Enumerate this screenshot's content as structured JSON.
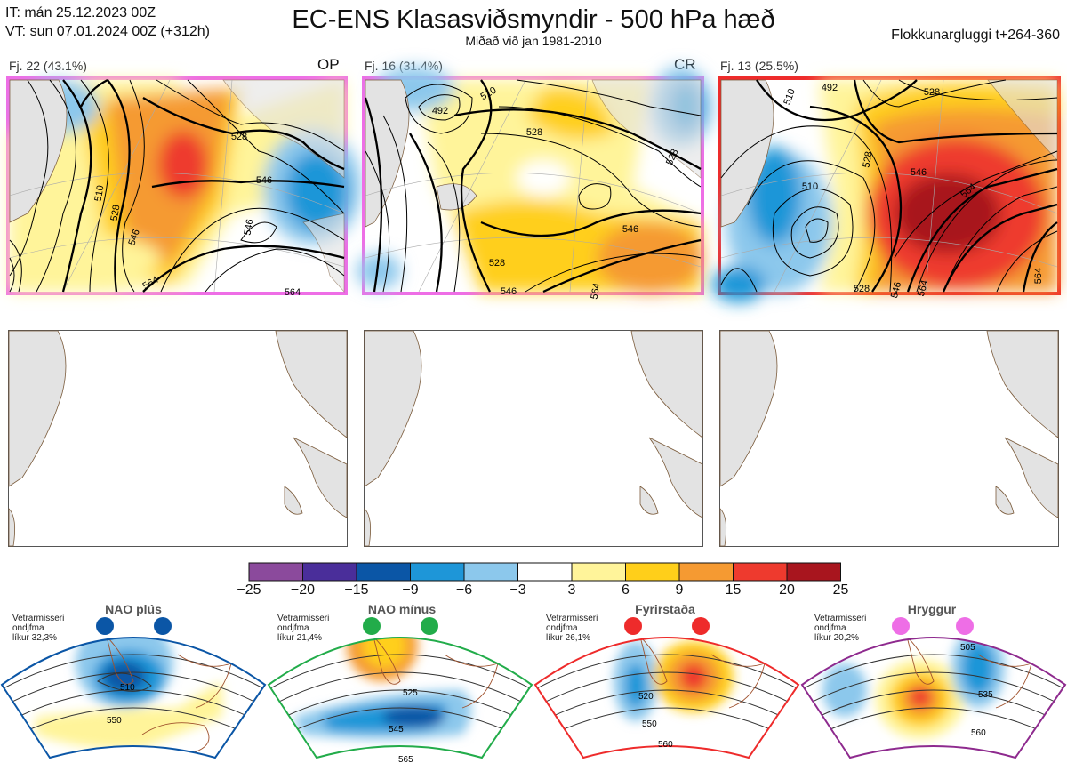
{
  "header": {
    "it_line": "IT: mán 25.12.2023 00Z",
    "vt_line": "VT: sun 07.01.2024 00Z  (+312h)",
    "title": "EC-ENS Klasasviðsmyndir - 500 hPa hæð",
    "subtitle": "Miðað við jan 1981-2010",
    "window": "Flokkunargluggi t+264-360"
  },
  "clusters": [
    {
      "label": "Fj. 22 (43.1%)",
      "tag": "OP",
      "border_color": "#ee6ee6",
      "contours": [
        "528",
        "546",
        "510",
        "528",
        "546",
        "564",
        "546",
        "564"
      ]
    },
    {
      "label": "Fj. 16 (31.4%)",
      "tag": "CR",
      "border_color": "#ee6ee6",
      "contours": [
        "510",
        "492",
        "528",
        "528",
        "546",
        "528",
        "546",
        "564"
      ]
    },
    {
      "label": "Fj. 13 (25.5%)",
      "tag": "",
      "border_color": "#ee2b2b",
      "contours": [
        "492",
        "510",
        "528",
        "528",
        "546",
        "564",
        "510",
        "528",
        "546",
        "564",
        "564"
      ]
    }
  ],
  "colorbar": {
    "colors": [
      "#8b4a9c",
      "#4a2e9a",
      "#0b56a6",
      "#1e96d8",
      "#8cc8ec",
      "#ffffff",
      "#fff49a",
      "#ffcf1a",
      "#f59a32",
      "#ee3a2e",
      "#a8151e"
    ],
    "ticks": [
      "−25",
      "−20",
      "−15",
      "−9",
      "−6",
      "−3",
      "3",
      "6",
      "9",
      "15",
      "20",
      "25"
    ]
  },
  "regimes": [
    {
      "name": "NAO plús",
      "color": "#0b56a6",
      "info": [
        "Vetrarmisseri",
        "ondjfma",
        "líkur 32,3%"
      ],
      "contours": [
        "510",
        "550"
      ]
    },
    {
      "name": "NAO mínus",
      "color": "#22ac4a",
      "info": [
        "Vetrarmisseri",
        "ondjfma",
        "líkur 21,4%"
      ],
      "contours": [
        "525",
        "545",
        "565"
      ]
    },
    {
      "name": "Fyrirstaða",
      "color": "#ee2b2b",
      "info": [
        "Vetrarmisseri",
        "ondjfma",
        "líkur 26,1%"
      ],
      "contours": [
        "520",
        "550",
        "560"
      ]
    },
    {
      "name": "Hryggur",
      "color": "#ee6ee6",
      "info": [
        "Vetrarmisseri",
        "ondjfma",
        "líkur 20,2%"
      ],
      "contours": [
        "505",
        "535",
        "560"
      ]
    }
  ]
}
